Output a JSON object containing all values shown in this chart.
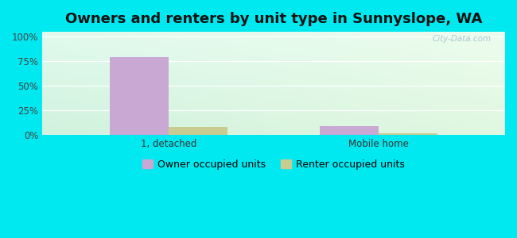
{
  "title": "Owners and renters by unit type in Sunnyslope, WA",
  "categories": [
    "1, detached",
    "Mobile home"
  ],
  "owner_values": [
    79,
    9
  ],
  "renter_values": [
    8,
    2
  ],
  "owner_color": "#c9a8d4",
  "renter_color": "#c8cc90",
  "background_color": "#00e8f0",
  "ylabel_ticks": [
    "0%",
    "25%",
    "50%",
    "75%",
    "100%"
  ],
  "ytick_vals": [
    0,
    25,
    50,
    75,
    100
  ],
  "ylim": [
    0,
    105
  ],
  "bar_width": 0.28,
  "legend_owner": "Owner occupied units",
  "legend_renter": "Renter occupied units",
  "watermark": "City-Data.com",
  "title_fontsize": 13,
  "tick_fontsize": 8.5,
  "legend_fontsize": 9
}
